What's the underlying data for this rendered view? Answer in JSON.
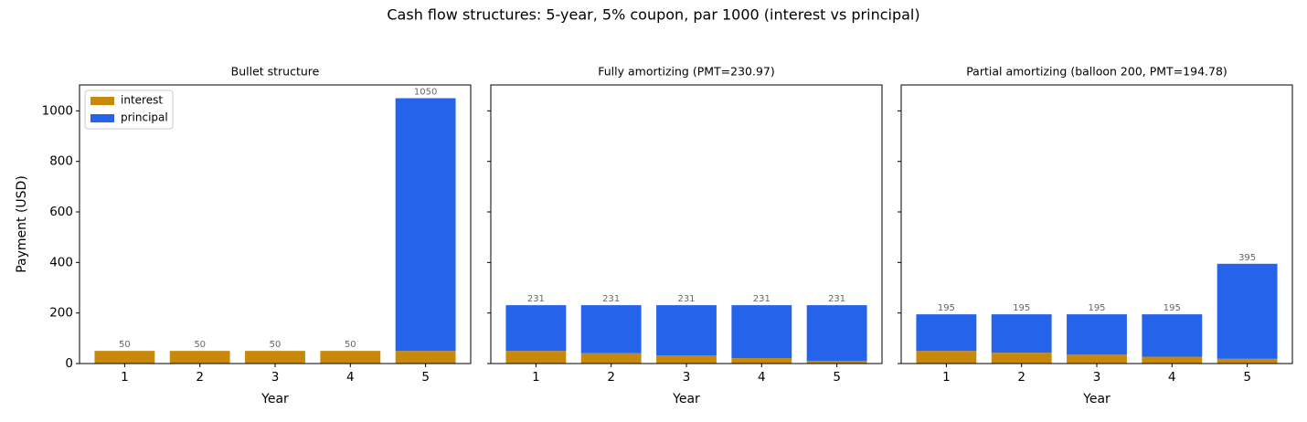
{
  "title": "Cash flow structures: 5-year, 5% coupon, par 1000 (interest vs principal)",
  "chart_data": [
    {
      "type": "stacked_bar",
      "title": "Bullet structure",
      "x_label": "Year",
      "y_label": "Payment (USD)",
      "categories": [
        "1",
        "2",
        "3",
        "4",
        "5"
      ],
      "series": [
        {
          "name": "interest",
          "color": "#c8880a",
          "values": [
            50,
            50,
            50,
            50,
            50
          ]
        },
        {
          "name": "principal",
          "color": "#2563eb",
          "values": [
            0,
            0,
            0,
            0,
            1000
          ]
        }
      ],
      "totals": {
        "values": [
          50,
          50,
          50,
          50,
          1050
        ]
      },
      "ylim": [
        0,
        1102.5
      ],
      "yticks": [
        0,
        200,
        400,
        600,
        800,
        1000
      ],
      "show_ytick_labels": true,
      "legend": "upper left"
    },
    {
      "type": "stacked_bar",
      "title": "Fully amortizing (PMT=230.97)",
      "x_label": "Year",
      "categories": [
        "1",
        "2",
        "3",
        "4",
        "5"
      ],
      "series": [
        {
          "color": "#c8880a",
          "values": [
            50,
            40.95,
            31.45,
            21.47,
            11.0
          ]
        },
        {
          "color": "#2563eb",
          "values": [
            180.97,
            190.02,
            199.52,
            209.5,
            219.97
          ]
        }
      ],
      "totals": {
        "values": [
          230.97,
          230.97,
          230.97,
          230.97,
          230.97
        ],
        "value_labels": [
          "231",
          "231",
          "231",
          "231",
          "231"
        ]
      },
      "ylim": [
        0,
        1102.5
      ],
      "yticks": [
        0,
        200,
        400,
        600,
        800,
        1000
      ],
      "show_ytick_labels": false
    },
    {
      "type": "stacked_bar",
      "title": "Partial amortizing (balloon 200, PMT=194.78)",
      "x_label": "Year",
      "categories": [
        "1",
        "2",
        "3",
        "4",
        "5"
      ],
      "series": [
        {
          "color": "#c8880a",
          "values": [
            50,
            42.76,
            35.16,
            27.18,
            18.8
          ]
        },
        {
          "color": "#2563eb",
          "values": [
            144.78,
            152.02,
            159.62,
            167.6,
            375.98
          ]
        }
      ],
      "totals": {
        "values": [
          194.78,
          194.78,
          194.78,
          194.78,
          394.78
        ],
        "value_labels": [
          "195",
          "195",
          "195",
          "195",
          "395"
        ]
      },
      "ylim": [
        0,
        1102.5
      ],
      "yticks": [
        0,
        200,
        400,
        600,
        800,
        1000
      ],
      "show_ytick_labels": false
    }
  ]
}
